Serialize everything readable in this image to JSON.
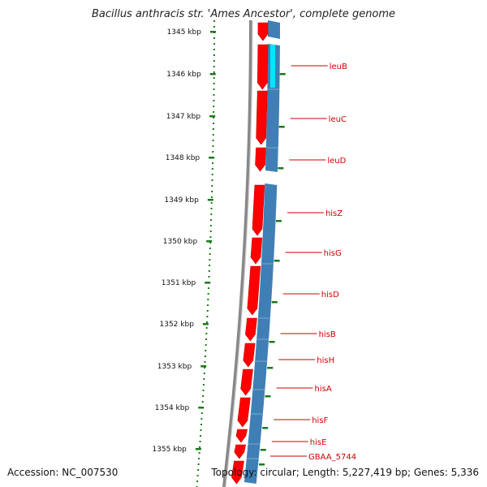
{
  "title": "Bacillus anthracis str. 'Ames Ancestor', complete genome",
  "accession": "Accession: NC_007530",
  "topology": "Topology: circular; Length: 5,227,419 bp; Genes: 5,336",
  "scale_labels": [
    "1345 kbp",
    "1346 kbp",
    "1347 kbp",
    "1348 kbp",
    "1349 kbp",
    "1350 kbp",
    "1351 kbp",
    "1352 kbp",
    "1353 kbp",
    "1354 kbp",
    "1355 kbp"
  ],
  "genes": [
    "leuB",
    "leuC",
    "leuD",
    "hisZ",
    "hisG",
    "hisD",
    "hisB",
    "hisH",
    "hisA",
    "hisF",
    "hisE",
    "GBAA_5744"
  ],
  "colors": {
    "forward_strand": "#ff0000",
    "reverse_strand": "#3f7fb5",
    "highlight_segment": "#00e5ff",
    "scale_ticks": "#1a7a1a",
    "backbone": "#888888",
    "gene_label": "#cc0000"
  }
}
